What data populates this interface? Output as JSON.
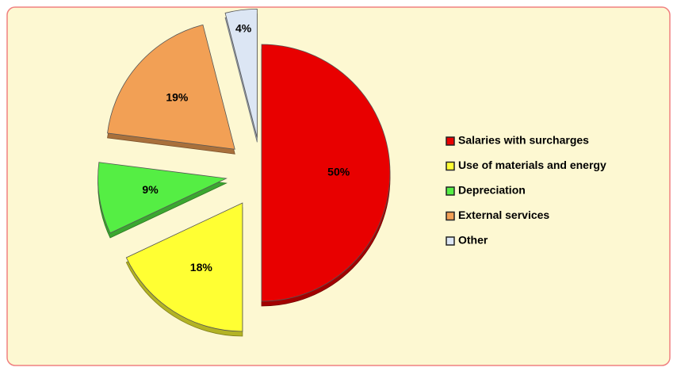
{
  "chart_data": {
    "type": "pie",
    "categories": [
      "Salaries with surcharges",
      "Use of materials and energy",
      "Depreciation",
      "External services",
      "Other"
    ],
    "values": [
      50,
      18,
      9,
      19,
      4
    ],
    "value_labels": [
      "50%",
      "18%",
      "9%",
      "19%",
      "4%"
    ],
    "colors": [
      "#e80000",
      "#ffff33",
      "#55ee44",
      "#f2a055",
      "#dce6f4"
    ],
    "legend": "right"
  }
}
